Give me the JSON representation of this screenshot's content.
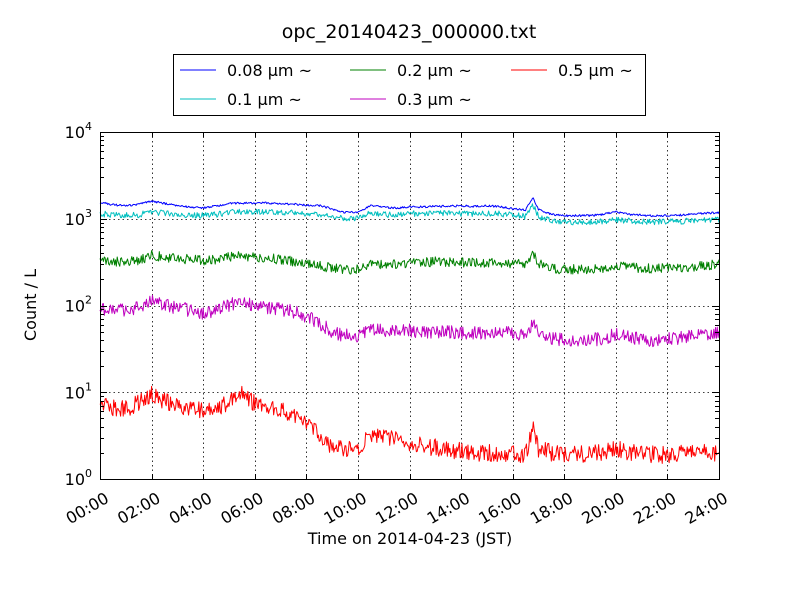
{
  "chart_data": {
    "type": "line",
    "title": "opc_20140423_000000.txt",
    "xlabel": "Time on 2014-04-23 (JST)",
    "ylabel": "Count / L",
    "x_unit": "hour",
    "xlim": [
      0,
      24
    ],
    "ylim": [
      1,
      10000
    ],
    "yscale": "log",
    "grid": true,
    "legend_position": "top-center",
    "x_ticks": [
      {
        "v": 0,
        "label": "00:00"
      },
      {
        "v": 2,
        "label": "02:00"
      },
      {
        "v": 4,
        "label": "04:00"
      },
      {
        "v": 6,
        "label": "06:00"
      },
      {
        "v": 8,
        "label": "08:00"
      },
      {
        "v": 10,
        "label": "10:00"
      },
      {
        "v": 12,
        "label": "12:00"
      },
      {
        "v": 14,
        "label": "14:00"
      },
      {
        "v": 16,
        "label": "16:00"
      },
      {
        "v": 18,
        "label": "18:00"
      },
      {
        "v": 20,
        "label": "20:00"
      },
      {
        "v": 22,
        "label": "22:00"
      },
      {
        "v": 24,
        "label": "24:00"
      }
    ],
    "y_ticks": [
      {
        "v": 1,
        "base": "10",
        "exp": "0"
      },
      {
        "v": 10,
        "base": "10",
        "exp": "1"
      },
      {
        "v": 100,
        "base": "10",
        "exp": "2"
      },
      {
        "v": 1000,
        "base": "10",
        "exp": "3"
      },
      {
        "v": 10000,
        "base": "10",
        "exp": "4"
      }
    ],
    "series": [
      {
        "name": "0.08 μm ~",
        "color": "#0000ff",
        "x": [
          0,
          0.5,
          1,
          1.5,
          2,
          2.5,
          3,
          3.5,
          4,
          4.5,
          5,
          5.5,
          6,
          6.5,
          7,
          7.5,
          8,
          8.5,
          9,
          9.5,
          10,
          10.5,
          11,
          11.5,
          12,
          12.5,
          13,
          13.5,
          14,
          14.5,
          15,
          15.5,
          16,
          16.5,
          16.8,
          17,
          17.5,
          18,
          18.5,
          19,
          19.5,
          20,
          20.5,
          21,
          21.5,
          22,
          22.5,
          23,
          23.5,
          24
        ],
        "y": [
          1550,
          1450,
          1420,
          1460,
          1600,
          1500,
          1420,
          1360,
          1330,
          1400,
          1500,
          1520,
          1500,
          1520,
          1480,
          1480,
          1430,
          1420,
          1300,
          1180,
          1200,
          1420,
          1350,
          1320,
          1380,
          1370,
          1390,
          1400,
          1410,
          1390,
          1420,
          1380,
          1300,
          1270,
          1750,
          1270,
          1130,
          1080,
          1090,
          1090,
          1120,
          1200,
          1130,
          1100,
          1080,
          1090,
          1100,
          1130,
          1160,
          1180
        ]
      },
      {
        "name": "0.1 μm ~",
        "color": "#00bfbf",
        "x": [
          0,
          0.5,
          1,
          1.5,
          2,
          2.5,
          3,
          3.5,
          4,
          4.5,
          5,
          5.5,
          6,
          6.5,
          7,
          7.5,
          8,
          8.5,
          9,
          9.5,
          10,
          10.5,
          11,
          11.5,
          12,
          12.5,
          13,
          13.5,
          14,
          14.5,
          15,
          15.5,
          16,
          16.5,
          16.8,
          17,
          17.5,
          18,
          18.5,
          19,
          19.5,
          20,
          20.5,
          21,
          21.5,
          22,
          22.5,
          23,
          23.5,
          24
        ],
        "y": [
          1150,
          1100,
          1090,
          1110,
          1200,
          1160,
          1120,
          1090,
          1090,
          1120,
          1180,
          1200,
          1190,
          1210,
          1190,
          1180,
          1150,
          1130,
          1050,
          1000,
          1010,
          1170,
          1120,
          1100,
          1150,
          1140,
          1150,
          1150,
          1140,
          1140,
          1160,
          1140,
          1100,
          1060,
          1430,
          1050,
          960,
          910,
          920,
          920,
          930,
          980,
          950,
          930,
          920,
          930,
          930,
          950,
          960,
          970
        ]
      },
      {
        "name": "0.2 μm ~",
        "color": "#008000",
        "x": [
          0,
          0.5,
          1,
          1.5,
          2,
          2.5,
          3,
          3.5,
          4,
          4.5,
          5,
          5.5,
          6,
          6.5,
          7,
          7.5,
          8,
          8.5,
          9,
          9.5,
          10,
          10.5,
          11,
          11.5,
          12,
          12.5,
          13,
          13.5,
          14,
          14.5,
          15,
          15.5,
          16,
          16.5,
          16.8,
          17,
          17.5,
          18,
          18.5,
          19,
          19.5,
          20,
          20.5,
          21,
          21.5,
          22,
          22.5,
          23,
          23.5,
          24
        ],
        "y": [
          330,
          320,
          320,
          330,
          380,
          360,
          350,
          340,
          330,
          340,
          360,
          380,
          360,
          350,
          340,
          320,
          300,
          285,
          270,
          260,
          265,
          300,
          295,
          300,
          310,
          315,
          320,
          320,
          315,
          310,
          315,
          310,
          305,
          300,
          385,
          300,
          270,
          260,
          262,
          262,
          265,
          290,
          275,
          270,
          268,
          268,
          272,
          280,
          290,
          300
        ]
      },
      {
        "name": "0.3 μm ~",
        "color": "#bf00bf",
        "x": [
          0,
          0.5,
          1,
          1.5,
          2,
          2.5,
          3,
          3.5,
          4,
          4.5,
          5,
          5.5,
          6,
          6.5,
          7,
          7.5,
          8,
          8.5,
          9,
          9.5,
          10,
          10.5,
          11,
          11.5,
          12,
          12.5,
          13,
          13.5,
          14,
          14.5,
          15,
          15.5,
          16,
          16.5,
          16.8,
          17,
          17.5,
          18,
          18.5,
          19,
          19.5,
          20,
          20.5,
          21,
          21.5,
          22,
          22.5,
          23,
          23.5,
          24
        ],
        "y": [
          90,
          88,
          90,
          95,
          112,
          100,
          95,
          88,
          82,
          90,
          100,
          112,
          100,
          95,
          90,
          85,
          75,
          62,
          50,
          45,
          45,
          55,
          52,
          50,
          52,
          50,
          50,
          50,
          49,
          48,
          49,
          48,
          48,
          47,
          63,
          48,
          42,
          40,
          40,
          40,
          42,
          46,
          43,
          41,
          40,
          41,
          42,
          44,
          46,
          48
        ]
      },
      {
        "name": "0.5 μm ~",
        "color": "#ff0000",
        "x": [
          0,
          0.5,
          1,
          1.5,
          2,
          2.5,
          3,
          3.5,
          4,
          4.5,
          5,
          5.5,
          6,
          6.5,
          7,
          7.5,
          8,
          8.5,
          9,
          9.5,
          10,
          10.5,
          11,
          11.5,
          12,
          12.5,
          13,
          13.5,
          14,
          14.5,
          15,
          15.5,
          16,
          16.5,
          16.8,
          17,
          17.5,
          18,
          18.5,
          19,
          19.5,
          20,
          20.5,
          21,
          21.5,
          22,
          22.5,
          23,
          23.5,
          24
        ],
        "y": [
          7,
          6.5,
          6.5,
          7.5,
          9.5,
          8,
          7,
          6.5,
          6,
          6.5,
          7.5,
          9.5,
          7.5,
          7,
          6.5,
          5.5,
          4.2,
          3.2,
          2.4,
          2.1,
          2.3,
          3.2,
          3,
          2.9,
          2.6,
          2.4,
          2.3,
          2.2,
          2.1,
          2.0,
          2.0,
          2.0,
          2.0,
          1.9,
          4.2,
          2.2,
          2.0,
          1.9,
          1.9,
          2.0,
          2.0,
          2.3,
          2.0,
          2.0,
          1.9,
          1.9,
          2.0,
          2.0,
          2.0,
          1.9
        ]
      }
    ]
  }
}
